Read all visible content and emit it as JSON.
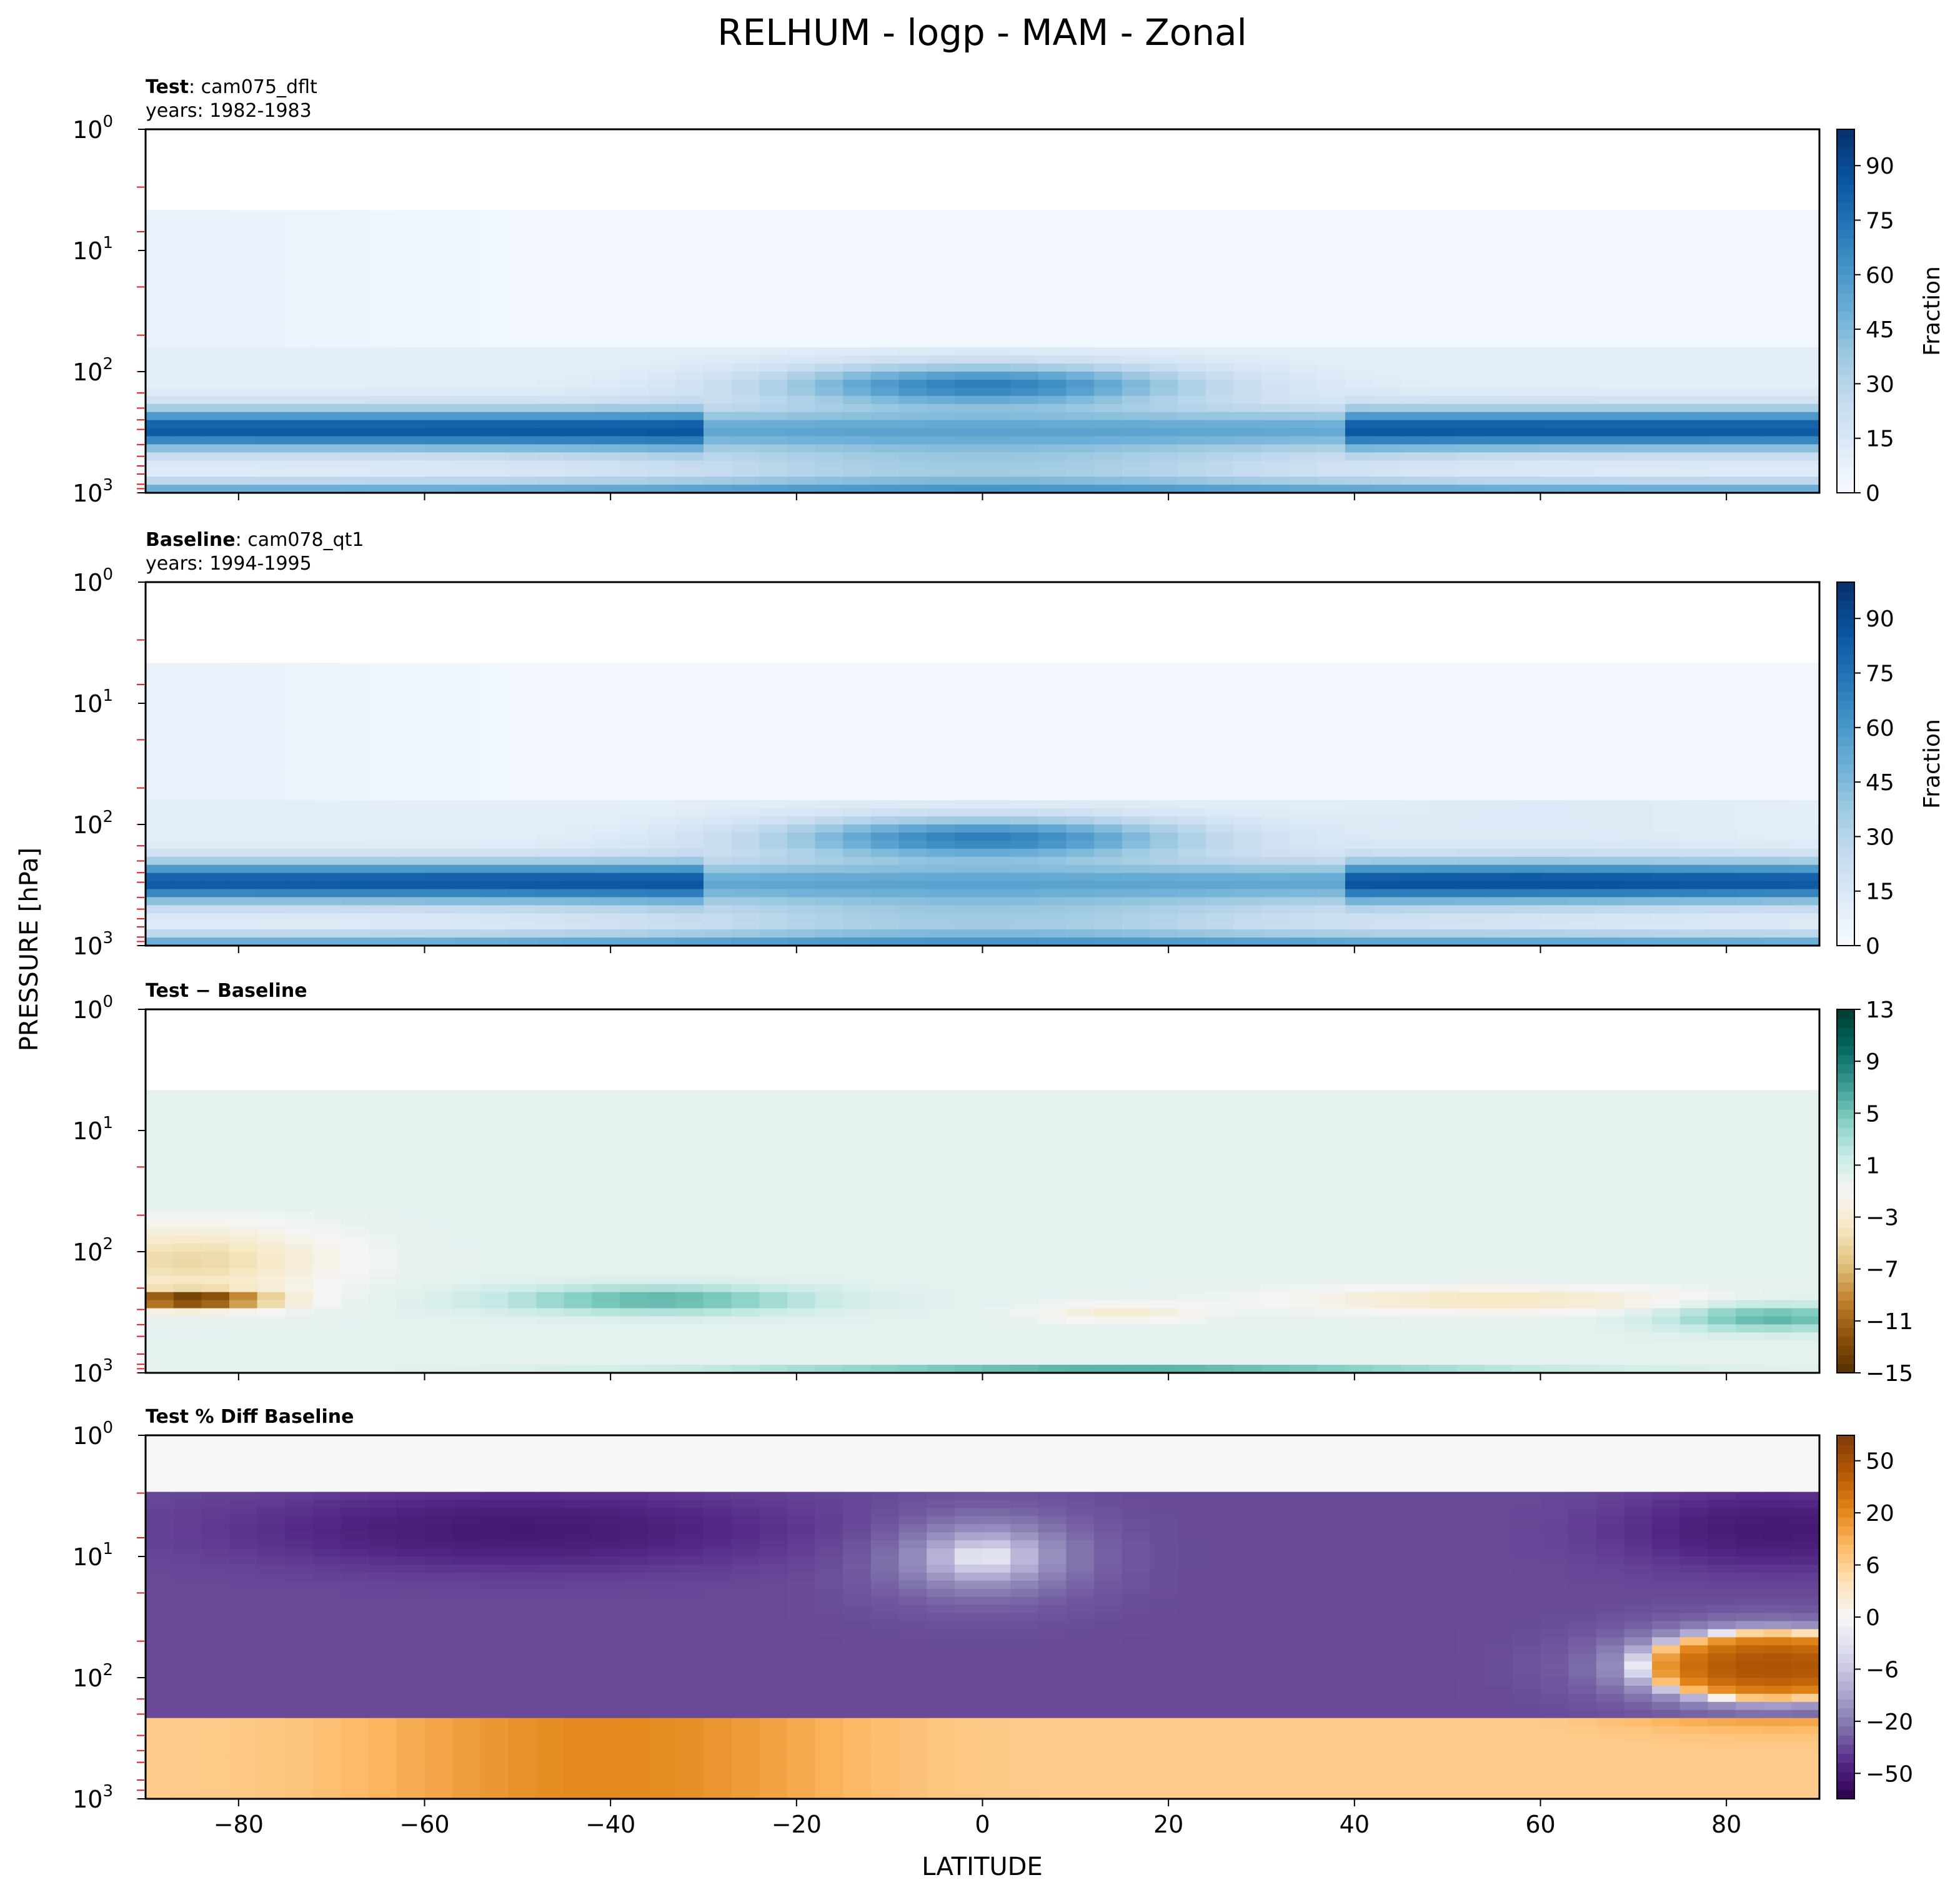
{
  "figure": {
    "title": "RELHUM - logp - MAM - Zonal",
    "ylabel": "PRESSURE [hPa]",
    "xlabel": "LATITUDE"
  },
  "chart_data": [
    {
      "type": "heatmap",
      "panel": "test",
      "subtitle_bold": "Test",
      "subtitle_rest": ": cam075_dflt",
      "years": "years: 1982-1983",
      "colorbar_label": "Fraction",
      "colorbar_ticks": [
        "0",
        "15",
        "30",
        "45",
        "60",
        "75",
        "90"
      ],
      "colorbar_range": [
        0,
        100
      ],
      "colormap": [
        "#f7fbff",
        "#deebf7",
        "#c6dbef",
        "#9ecae1",
        "#6baed6",
        "#4292c6",
        "#2171b5",
        "#08519c",
        "#08306b"
      ],
      "yscale": "log",
      "ylim": [
        1000,
        1
      ],
      "xlim": [
        -90,
        90
      ],
      "x": [
        -90,
        -80,
        -70,
        -60,
        -50,
        -40,
        -30,
        -20,
        -10,
        0,
        10,
        20,
        30,
        40,
        50,
        60,
        70,
        80,
        90
      ],
      "y": [
        3,
        7,
        20,
        50,
        100,
        150,
        200,
        250,
        300,
        400,
        500,
        600,
        700,
        850,
        925,
        1000
      ],
      "z_mode": "rh",
      "variant": 0
    },
    {
      "type": "heatmap",
      "panel": "baseline",
      "subtitle_bold": "Baseline",
      "subtitle_rest": ": cam078_qt1",
      "years": "years: 1994-1995",
      "colorbar_label": "Fraction",
      "colorbar_ticks": [
        "0",
        "15",
        "30",
        "45",
        "60",
        "75",
        "90"
      ],
      "colorbar_range": [
        0,
        100
      ],
      "colormap": [
        "#f7fbff",
        "#deebf7",
        "#c6dbef",
        "#9ecae1",
        "#6baed6",
        "#4292c6",
        "#2171b5",
        "#08519c",
        "#08306b"
      ],
      "yscale": "log",
      "ylim": [
        1000,
        1
      ],
      "xlim": [
        -90,
        90
      ],
      "x": [
        -90,
        -80,
        -70,
        -60,
        -50,
        -40,
        -30,
        -20,
        -10,
        0,
        10,
        20,
        30,
        40,
        50,
        60,
        70,
        80,
        90
      ],
      "y": [
        3,
        7,
        20,
        50,
        100,
        150,
        200,
        250,
        300,
        400,
        500,
        600,
        700,
        850,
        925,
        1000
      ],
      "z_mode": "rh",
      "variant": 1
    },
    {
      "type": "heatmap",
      "panel": "diff",
      "subtitle_bold": "Test − Baseline",
      "subtitle_rest": "",
      "years": "",
      "colorbar_label": "",
      "colorbar_ticks": [
        "−15",
        "−11",
        "−7",
        "−3",
        "1",
        "5",
        "9",
        "13"
      ],
      "colorbar_range": [
        -15,
        13
      ],
      "colormap": [
        "#543005",
        "#8c510a",
        "#bf812d",
        "#dfc27d",
        "#f6e8c3",
        "#f5f5f5",
        "#c7eae5",
        "#80cdc1",
        "#35978f",
        "#01665e",
        "#003c30"
      ],
      "yscale": "log",
      "ylim": [
        1000,
        1
      ],
      "xlim": [
        -90,
        90
      ],
      "x": [
        -90,
        -80,
        -70,
        -60,
        -50,
        -40,
        -30,
        -20,
        -10,
        0,
        10,
        20,
        30,
        40,
        50,
        60,
        70,
        80,
        90
      ],
      "y": [
        20,
        50,
        100,
        200,
        300,
        400,
        500,
        700,
        850,
        925,
        1000
      ],
      "z_mode": "diff"
    },
    {
      "type": "heatmap",
      "panel": "pctdiff",
      "subtitle_bold": "Test % Diff Baseline",
      "subtitle_rest": "",
      "years": "",
      "colorbar_label": "",
      "colorbar_ticks": [
        "−50",
        "−20",
        "−6",
        "0",
        "6",
        "20",
        "50"
      ],
      "colorbar_range": [
        -100,
        100
      ],
      "colormap": [
        "#2d004b",
        "#542788",
        "#8073ac",
        "#b2abd2",
        "#d8daeb",
        "#f7f7f7",
        "#fee0b6",
        "#fdb863",
        "#e08214",
        "#b35806",
        "#7f3b08"
      ],
      "yscale": "log",
      "ylim": [
        1000,
        1
      ],
      "xlim": [
        -90,
        90
      ],
      "x": [
        -90,
        -80,
        -70,
        -60,
        -50,
        -40,
        -30,
        -20,
        -10,
        0,
        10,
        20,
        30,
        40,
        50,
        60,
        70,
        80,
        90
      ],
      "y": [
        3,
        7,
        20,
        50,
        100,
        150,
        200,
        300,
        400,
        500,
        700,
        850,
        1000
      ],
      "z_mode": "pct"
    }
  ],
  "xticks": [
    "−80",
    "−60",
    "−40",
    "−20",
    "0",
    "20",
    "40",
    "60",
    "80"
  ],
  "xtick_values": [
    -80,
    -60,
    -40,
    -20,
    0,
    20,
    40,
    60,
    80
  ],
  "yticks": [
    {
      "base": "10",
      "exp": "0",
      "value": 1
    },
    {
      "base": "10",
      "exp": "1",
      "value": 10
    },
    {
      "base": "10",
      "exp": "2",
      "value": 100
    },
    {
      "base": "10",
      "exp": "3",
      "value": 1000
    }
  ]
}
